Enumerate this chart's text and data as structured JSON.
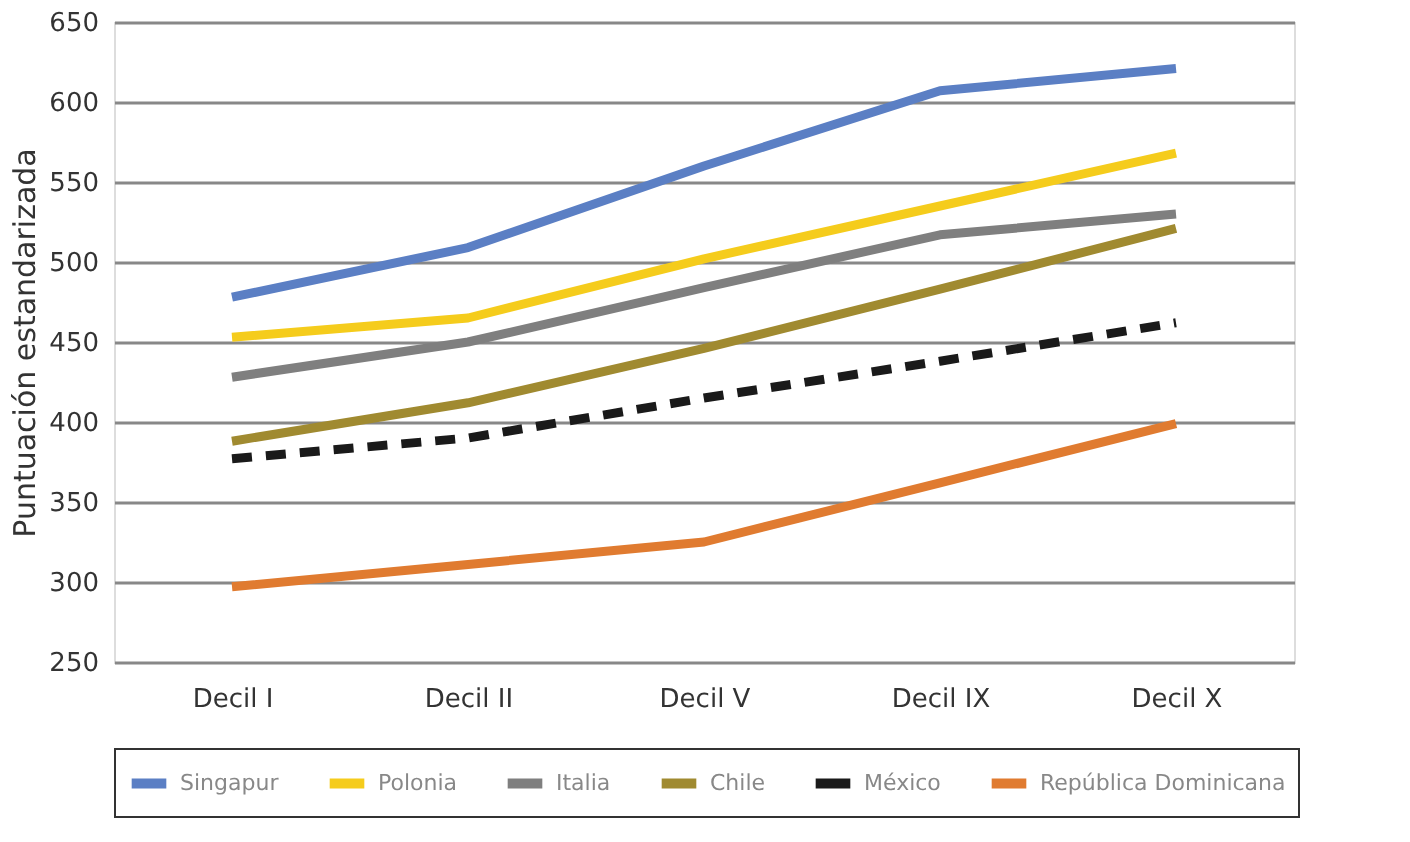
{
  "chart_data": {
    "type": "line",
    "ylabel": "Puntuación estandarizada",
    "categories": [
      "Decil I",
      "Decil II",
      "Decil V",
      "Decil IX",
      "Decil X"
    ],
    "series": [
      {
        "name": "Singapur",
        "color": "#5b7fc4",
        "values": [
          478,
          509,
          560,
          607,
          621
        ]
      },
      {
        "name": "Polonia",
        "color": "#f5cc1c",
        "values": [
          453,
          465,
          502,
          535,
          568
        ]
      },
      {
        "name": "Italia",
        "color": "#7f7f7f",
        "values": [
          428,
          450,
          484,
          517,
          530
        ]
      },
      {
        "name": "Chile",
        "color": "#a08a30",
        "values": [
          388,
          412,
          446,
          483,
          521
        ]
      },
      {
        "name": "México",
        "color": "#1a1a1a",
        "line_style": "dashed",
        "values": [
          377,
          390,
          415,
          438,
          462
        ]
      },
      {
        "name": "República Dominicana",
        "color": "#e07b30",
        "values": [
          297,
          311,
          325,
          362,
          399
        ]
      }
    ],
    "ylim": [
      250,
      650
    ],
    "yticks": [
      250,
      300,
      350,
      400,
      450,
      500,
      550,
      600,
      650
    ],
    "grid": "y",
    "legend": "bottom",
    "marker": "none",
    "line_style": "solid"
  }
}
